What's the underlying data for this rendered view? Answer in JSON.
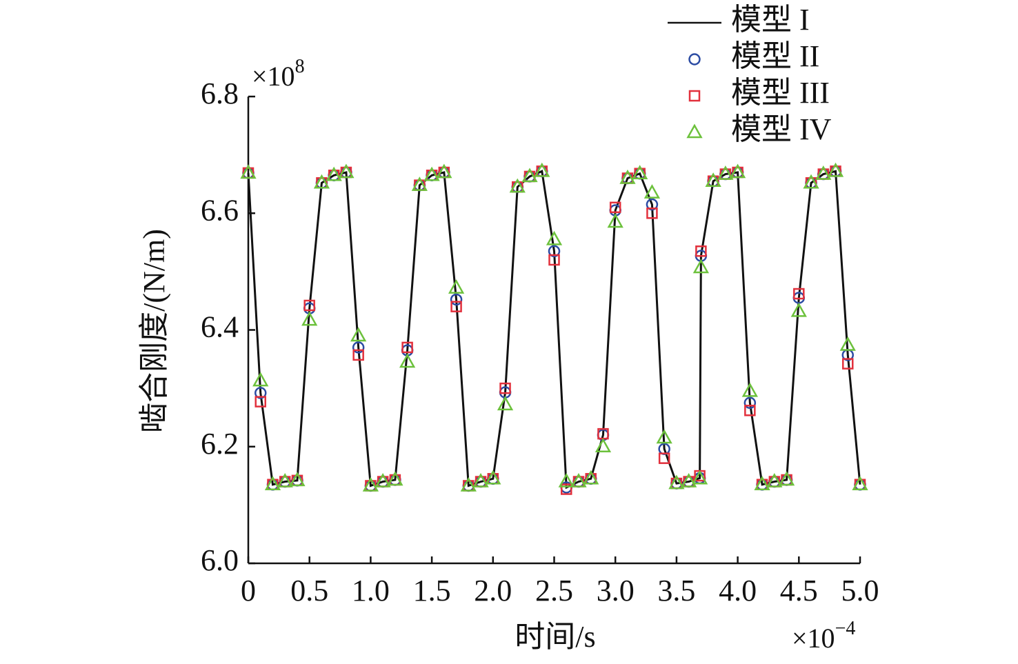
{
  "chart_data": {
    "type": "line",
    "x_label": "时间/s",
    "y_label": "啮合刚度/(N/m)",
    "x_scale_label": {
      "base": "×10",
      "exponent": "−4"
    },
    "y_scale_label": {
      "base": "×10",
      "exponent": "8"
    },
    "x": [
      0,
      0.1,
      0.2,
      0.3,
      0.4,
      0.5,
      0.6,
      0.7,
      0.8,
      0.9,
      1.0,
      1.1,
      1.2,
      1.3,
      1.4,
      1.5,
      1.6,
      1.7,
      1.8,
      1.9,
      2.0,
      2.1,
      2.2,
      2.3,
      2.4,
      2.5,
      2.6,
      2.7,
      2.8,
      2.9,
      3.0,
      3.1,
      3.2,
      3.3,
      3.4,
      3.5,
      3.6,
      3.69,
      3.7,
      3.8,
      3.9,
      4.0,
      4.1,
      4.2,
      4.3,
      4.4,
      4.5,
      4.6,
      4.7,
      4.8,
      4.9,
      5.0
    ],
    "series": [
      {
        "name": "模型 I",
        "color": "#111111",
        "marker": "line",
        "values": [
          6.669,
          6.292,
          6.135,
          6.14,
          6.142,
          6.437,
          6.652,
          6.665,
          6.67,
          6.37,
          6.133,
          6.14,
          6.143,
          6.365,
          6.648,
          6.665,
          6.67,
          6.452,
          6.133,
          6.14,
          6.145,
          6.293,
          6.645,
          6.663,
          6.672,
          6.535,
          6.13,
          6.14,
          6.145,
          6.22,
          6.605,
          6.66,
          6.668,
          6.615,
          6.196,
          6.137,
          6.14,
          6.146,
          6.527,
          6.655,
          6.667,
          6.67,
          6.275,
          6.135,
          6.14,
          6.143,
          6.455,
          6.652,
          6.667,
          6.672,
          6.357,
          6.135
        ]
      },
      {
        "name": "模型 II",
        "color": "#2b4ba3",
        "marker": "circle",
        "values": [
          6.669,
          6.292,
          6.135,
          6.14,
          6.142,
          6.437,
          6.652,
          6.665,
          6.67,
          6.37,
          6.133,
          6.14,
          6.143,
          6.365,
          6.648,
          6.665,
          6.67,
          6.452,
          6.133,
          6.14,
          6.145,
          6.293,
          6.645,
          6.663,
          6.672,
          6.535,
          6.13,
          6.14,
          6.145,
          6.22,
          6.605,
          6.66,
          6.668,
          6.615,
          6.196,
          6.137,
          6.14,
          6.146,
          6.527,
          6.655,
          6.667,
          6.67,
          6.275,
          6.135,
          6.14,
          6.143,
          6.455,
          6.652,
          6.667,
          6.672,
          6.357,
          6.135
        ]
      },
      {
        "name": "模型 III",
        "color": "#e2303c",
        "marker": "square",
        "values": [
          6.669,
          6.277,
          6.135,
          6.14,
          6.142,
          6.442,
          6.652,
          6.665,
          6.67,
          6.357,
          6.133,
          6.14,
          6.143,
          6.37,
          6.648,
          6.665,
          6.67,
          6.44,
          6.133,
          6.14,
          6.145,
          6.3,
          6.645,
          6.663,
          6.672,
          6.52,
          6.127,
          6.14,
          6.145,
          6.222,
          6.61,
          6.66,
          6.668,
          6.6,
          6.18,
          6.137,
          6.14,
          6.15,
          6.535,
          6.655,
          6.667,
          6.67,
          6.262,
          6.135,
          6.14,
          6.143,
          6.462,
          6.652,
          6.667,
          6.672,
          6.342,
          6.135
        ]
      },
      {
        "name": "模型 IV",
        "color": "#6cc13c",
        "marker": "triangle",
        "values": [
          6.669,
          6.313,
          6.135,
          6.14,
          6.142,
          6.417,
          6.652,
          6.665,
          6.67,
          6.39,
          6.133,
          6.14,
          6.143,
          6.345,
          6.648,
          6.665,
          6.67,
          6.472,
          6.133,
          6.14,
          6.145,
          6.272,
          6.645,
          6.663,
          6.672,
          6.555,
          6.14,
          6.14,
          6.145,
          6.2,
          6.585,
          6.66,
          6.668,
          6.635,
          6.215,
          6.137,
          6.14,
          6.145,
          6.507,
          6.655,
          6.667,
          6.67,
          6.295,
          6.135,
          6.14,
          6.143,
          6.432,
          6.652,
          6.667,
          6.672,
          6.374,
          6.135
        ]
      }
    ],
    "xlim": [
      0,
      5
    ],
    "xticks": [
      0,
      0.5,
      {
        "value": 1,
        "label": "1.0"
      },
      1.5,
      {
        "value": 2,
        "label": "2.0"
      },
      2.5,
      {
        "value": 3,
        "label": "3.0"
      },
      3.5,
      {
        "value": 4,
        "label": "4.0"
      },
      4.5,
      {
        "value": 5,
        "label": "5.0"
      }
    ],
    "ylim": [
      6,
      6.8
    ],
    "yticks": [
      {
        "value": 6,
        "label": "6.0"
      },
      6.2,
      6.4,
      6.6,
      6.8
    ],
    "grid": false,
    "legend": "upper right"
  }
}
